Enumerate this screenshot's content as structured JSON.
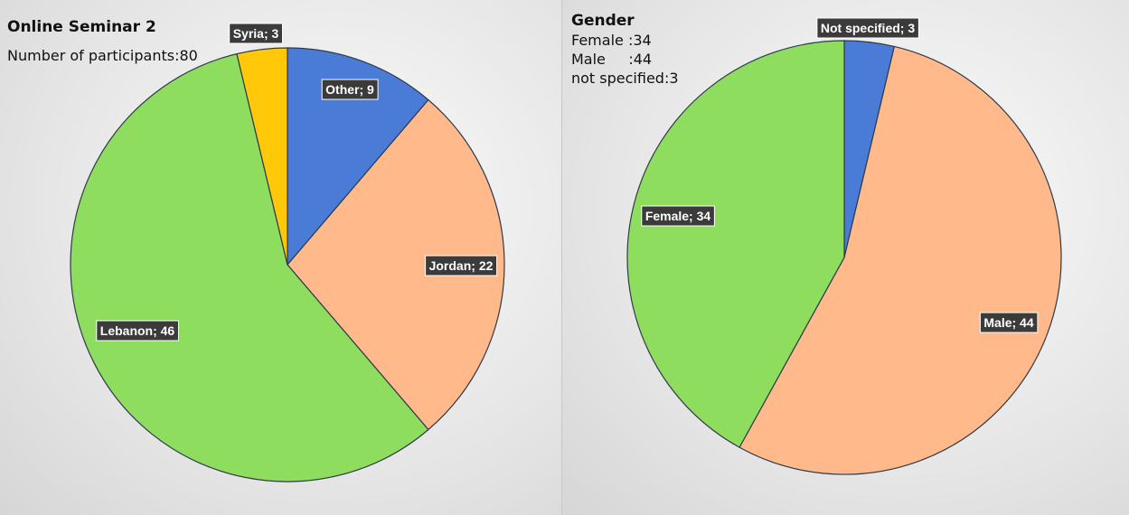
{
  "charts": [
    {
      "title": "Online Seminar 2",
      "info_lines": [
        "Number of participants:80"
      ]
    },
    {
      "title": "Gender",
      "info_lines": [
        "Female :34",
        "Male     :44",
        "not specified:3"
      ]
    }
  ],
  "chart_data": [
    {
      "type": "pie",
      "title": "Online Seminar 2",
      "subtitle": "Number of participants:80",
      "slices": [
        {
          "label": "Other",
          "value": 9,
          "color": "#4a7bd6",
          "text": "Other; 9"
        },
        {
          "label": "Jordan",
          "value": 22,
          "color": "#ffb98a",
          "text": "Jordan; 22"
        },
        {
          "label": "Lebanon",
          "value": 46,
          "color": "#8fdd5e",
          "text": "Lebanon; 46"
        },
        {
          "label": "Syria",
          "value": 3,
          "color": "#ffc808",
          "text": "Syria; 3"
        }
      ]
    },
    {
      "type": "pie",
      "title": "Gender",
      "subtitle": "Female :34 / Male :44 / not specified:3",
      "slices": [
        {
          "label": "Not specified",
          "value": 3,
          "color": "#4a7bd6",
          "text": "Not specified; 3"
        },
        {
          "label": "Male",
          "value": 44,
          "color": "#ffb98a",
          "text": "Male; 44"
        },
        {
          "label": "Female",
          "value": 34,
          "color": "#8fdd5e",
          "text": "Female; 34"
        }
      ]
    }
  ]
}
